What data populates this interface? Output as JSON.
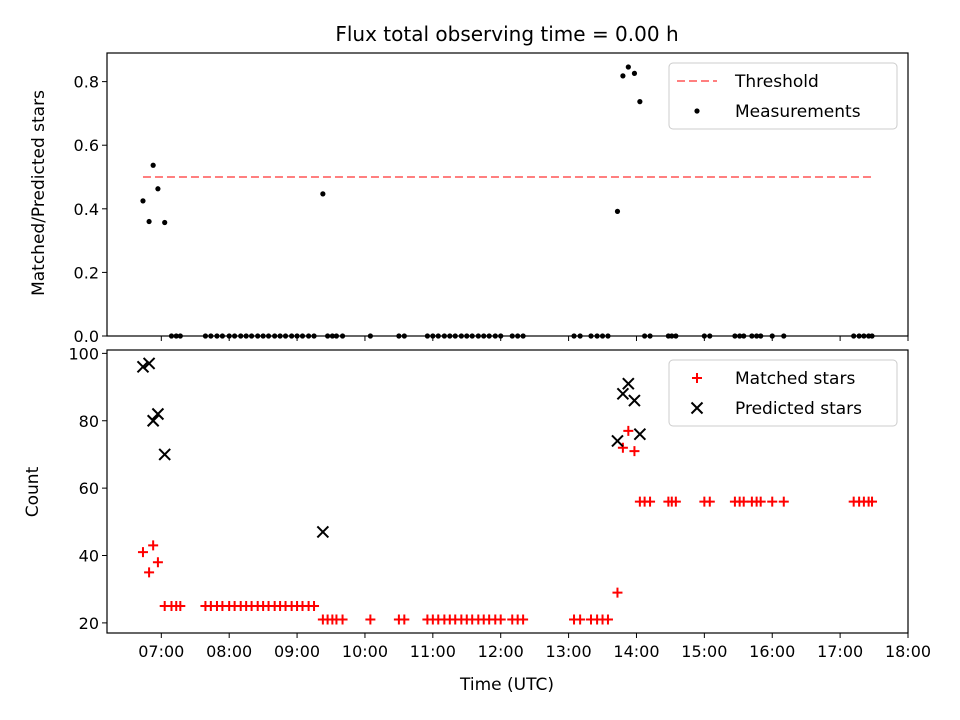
{
  "figure": {
    "title": "Flux total observing time = 0.00 h"
  },
  "colors": {
    "threshold": "#ff7f7f",
    "matched": "#ff0000",
    "predicted": "#000000",
    "measurements": "#000000"
  },
  "chart_data": [
    {
      "type": "scatter",
      "ylabel": "Matched/Predicted stars",
      "xlabel": "",
      "xlim": [
        6.2,
        18.0
      ],
      "ylim": [
        0,
        0.89
      ],
      "yticks": [
        0.0,
        0.2,
        0.4,
        0.6,
        0.8
      ],
      "ytick_labels": [
        "0.0",
        "0.2",
        "0.4",
        "0.6",
        "0.8"
      ],
      "legend_position": "top-right",
      "series": [
        {
          "name": "Threshold",
          "kind": "line",
          "style": "dashed",
          "x": [
            6.73,
            17.47
          ],
          "y": [
            0.5,
            0.5
          ]
        },
        {
          "name": "Measurements",
          "kind": "points",
          "points": [
            [
              6.73,
              0.425
            ],
            [
              6.82,
              0.36
            ],
            [
              6.88,
              0.537
            ],
            [
              6.95,
              0.463
            ],
            [
              7.05,
              0.357
            ],
            [
              7.15,
              0
            ],
            [
              7.22,
              0
            ],
            [
              7.28,
              0
            ],
            [
              7.65,
              0
            ],
            [
              7.73,
              0
            ],
            [
              7.82,
              0
            ],
            [
              7.9,
              0
            ],
            [
              8.0,
              0
            ],
            [
              8.08,
              0
            ],
            [
              8.17,
              0
            ],
            [
              8.25,
              0
            ],
            [
              8.33,
              0
            ],
            [
              8.42,
              0
            ],
            [
              8.5,
              0
            ],
            [
              8.58,
              0
            ],
            [
              8.67,
              0
            ],
            [
              8.75,
              0
            ],
            [
              8.83,
              0
            ],
            [
              8.92,
              0
            ],
            [
              9.0,
              0
            ],
            [
              9.08,
              0
            ],
            [
              9.17,
              0
            ],
            [
              9.25,
              0
            ],
            [
              9.38,
              0.447
            ],
            [
              9.45,
              0
            ],
            [
              9.52,
              0
            ],
            [
              9.58,
              0
            ],
            [
              9.67,
              0
            ],
            [
              10.08,
              0
            ],
            [
              10.5,
              0
            ],
            [
              10.58,
              0
            ],
            [
              10.92,
              0
            ],
            [
              11.0,
              0
            ],
            [
              11.08,
              0
            ],
            [
              11.17,
              0
            ],
            [
              11.25,
              0
            ],
            [
              11.33,
              0
            ],
            [
              11.42,
              0
            ],
            [
              11.5,
              0
            ],
            [
              11.58,
              0
            ],
            [
              11.67,
              0
            ],
            [
              11.75,
              0
            ],
            [
              11.83,
              0
            ],
            [
              11.92,
              0
            ],
            [
              12.0,
              0
            ],
            [
              12.17,
              0
            ],
            [
              12.25,
              0
            ],
            [
              12.33,
              0
            ],
            [
              13.08,
              0
            ],
            [
              13.17,
              0
            ],
            [
              13.33,
              0
            ],
            [
              13.42,
              0
            ],
            [
              13.5,
              0
            ],
            [
              13.58,
              0
            ],
            [
              13.72,
              0.392
            ],
            [
              13.8,
              0.818
            ],
            [
              13.88,
              0.846
            ],
            [
              13.97,
              0.826
            ],
            [
              14.05,
              0.737
            ],
            [
              14.12,
              0
            ],
            [
              14.2,
              0
            ],
            [
              14.47,
              0
            ],
            [
              14.52,
              0
            ],
            [
              14.58,
              0
            ],
            [
              15.0,
              0
            ],
            [
              15.08,
              0
            ],
            [
              15.45,
              0
            ],
            [
              15.52,
              0
            ],
            [
              15.58,
              0
            ],
            [
              15.7,
              0
            ],
            [
              15.77,
              0
            ],
            [
              15.83,
              0
            ],
            [
              16.0,
              0
            ],
            [
              16.17,
              0
            ],
            [
              17.2,
              0
            ],
            [
              17.28,
              0
            ],
            [
              17.35,
              0
            ],
            [
              17.42,
              0
            ],
            [
              17.47,
              0
            ]
          ]
        }
      ]
    },
    {
      "type": "scatter",
      "ylabel": "Count",
      "xlabel": "Time (UTC)",
      "xlim": [
        6.2,
        18.0
      ],
      "ylim": [
        17,
        101
      ],
      "xticks": [
        7,
        8,
        9,
        10,
        11,
        12,
        13,
        14,
        15,
        16,
        17,
        18
      ],
      "xtick_labels": [
        "07:00",
        "08:00",
        "09:00",
        "10:00",
        "11:00",
        "12:00",
        "13:00",
        "14:00",
        "15:00",
        "16:00",
        "17:00",
        "18:00"
      ],
      "yticks": [
        20,
        40,
        60,
        80,
        100
      ],
      "ytick_labels": [
        "20",
        "40",
        "60",
        "80",
        "100"
      ],
      "legend_position": "top-right",
      "series": [
        {
          "name": "Matched stars",
          "kind": "plus",
          "points": [
            [
              6.73,
              41
            ],
            [
              6.82,
              35
            ],
            [
              6.88,
              43
            ],
            [
              6.95,
              38
            ],
            [
              7.05,
              25
            ],
            [
              7.15,
              25
            ],
            [
              7.22,
              25
            ],
            [
              7.28,
              25
            ],
            [
              7.65,
              25
            ],
            [
              7.73,
              25
            ],
            [
              7.82,
              25
            ],
            [
              7.9,
              25
            ],
            [
              8.0,
              25
            ],
            [
              8.08,
              25
            ],
            [
              8.17,
              25
            ],
            [
              8.25,
              25
            ],
            [
              8.33,
              25
            ],
            [
              8.42,
              25
            ],
            [
              8.5,
              25
            ],
            [
              8.58,
              25
            ],
            [
              8.67,
              25
            ],
            [
              8.75,
              25
            ],
            [
              8.83,
              25
            ],
            [
              8.92,
              25
            ],
            [
              9.0,
              25
            ],
            [
              9.08,
              25
            ],
            [
              9.17,
              25
            ],
            [
              9.25,
              25
            ],
            [
              9.38,
              21
            ],
            [
              9.45,
              21
            ],
            [
              9.52,
              21
            ],
            [
              9.58,
              21
            ],
            [
              9.67,
              21
            ],
            [
              10.08,
              21
            ],
            [
              10.5,
              21
            ],
            [
              10.58,
              21
            ],
            [
              10.92,
              21
            ],
            [
              11.0,
              21
            ],
            [
              11.08,
              21
            ],
            [
              11.17,
              21
            ],
            [
              11.25,
              21
            ],
            [
              11.33,
              21
            ],
            [
              11.42,
              21
            ],
            [
              11.5,
              21
            ],
            [
              11.58,
              21
            ],
            [
              11.67,
              21
            ],
            [
              11.75,
              21
            ],
            [
              11.83,
              21
            ],
            [
              11.92,
              21
            ],
            [
              12.0,
              21
            ],
            [
              12.17,
              21
            ],
            [
              12.25,
              21
            ],
            [
              12.33,
              21
            ],
            [
              13.08,
              21
            ],
            [
              13.17,
              21
            ],
            [
              13.33,
              21
            ],
            [
              13.42,
              21
            ],
            [
              13.5,
              21
            ],
            [
              13.58,
              21
            ],
            [
              13.72,
              29
            ],
            [
              13.8,
              72
            ],
            [
              13.88,
              77
            ],
            [
              13.97,
              71
            ],
            [
              14.05,
              56
            ],
            [
              14.12,
              56
            ],
            [
              14.2,
              56
            ],
            [
              14.47,
              56
            ],
            [
              14.52,
              56
            ],
            [
              14.58,
              56
            ],
            [
              15.0,
              56
            ],
            [
              15.08,
              56
            ],
            [
              15.45,
              56
            ],
            [
              15.52,
              56
            ],
            [
              15.58,
              56
            ],
            [
              15.7,
              56
            ],
            [
              15.77,
              56
            ],
            [
              15.83,
              56
            ],
            [
              16.0,
              56
            ],
            [
              16.17,
              56
            ],
            [
              17.2,
              56
            ],
            [
              17.28,
              56
            ],
            [
              17.35,
              56
            ],
            [
              17.42,
              56
            ],
            [
              17.47,
              56
            ]
          ]
        },
        {
          "name": "Predicted stars",
          "kind": "cross",
          "points": [
            [
              6.73,
              96
            ],
            [
              6.82,
              97
            ],
            [
              6.88,
              80
            ],
            [
              6.95,
              82
            ],
            [
              7.05,
              70
            ],
            [
              9.38,
              47
            ],
            [
              13.72,
              74
            ],
            [
              13.8,
              88
            ],
            [
              13.88,
              91
            ],
            [
              13.97,
              86
            ],
            [
              14.05,
              76
            ]
          ]
        }
      ]
    }
  ]
}
